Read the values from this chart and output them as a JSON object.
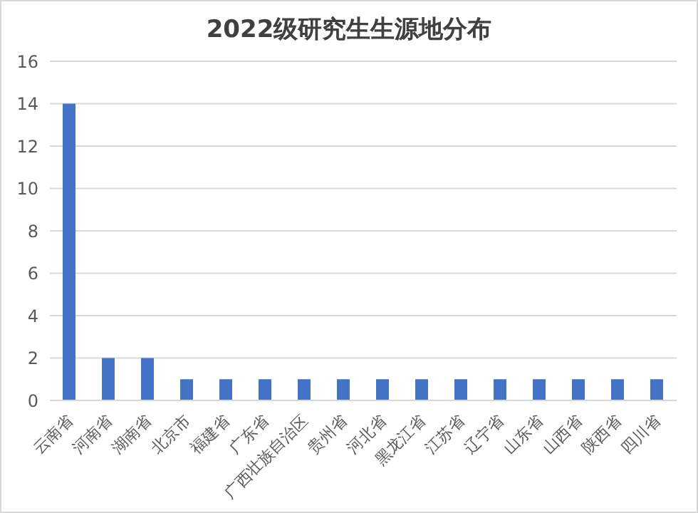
{
  "chart_data": {
    "type": "bar",
    "title": "2022级研究生生源地分布",
    "categories": [
      "云南省",
      "河南省",
      "湖南省",
      "北京市",
      "福建省",
      "广东省",
      "广西壮族自治区",
      "贵州省",
      "河北省",
      "黑龙江省",
      "江苏省",
      "辽宁省",
      "山东省",
      "山西省",
      "陕西省",
      "四川省"
    ],
    "values": [
      14,
      2,
      2,
      1,
      1,
      1,
      1,
      1,
      1,
      1,
      1,
      1,
      1,
      1,
      1,
      1
    ],
    "color": "#4472c4",
    "ylim": [
      0,
      16
    ],
    "yticks": [
      0,
      2,
      4,
      6,
      8,
      10,
      12,
      14,
      16
    ],
    "grid": "y",
    "legend": false
  }
}
